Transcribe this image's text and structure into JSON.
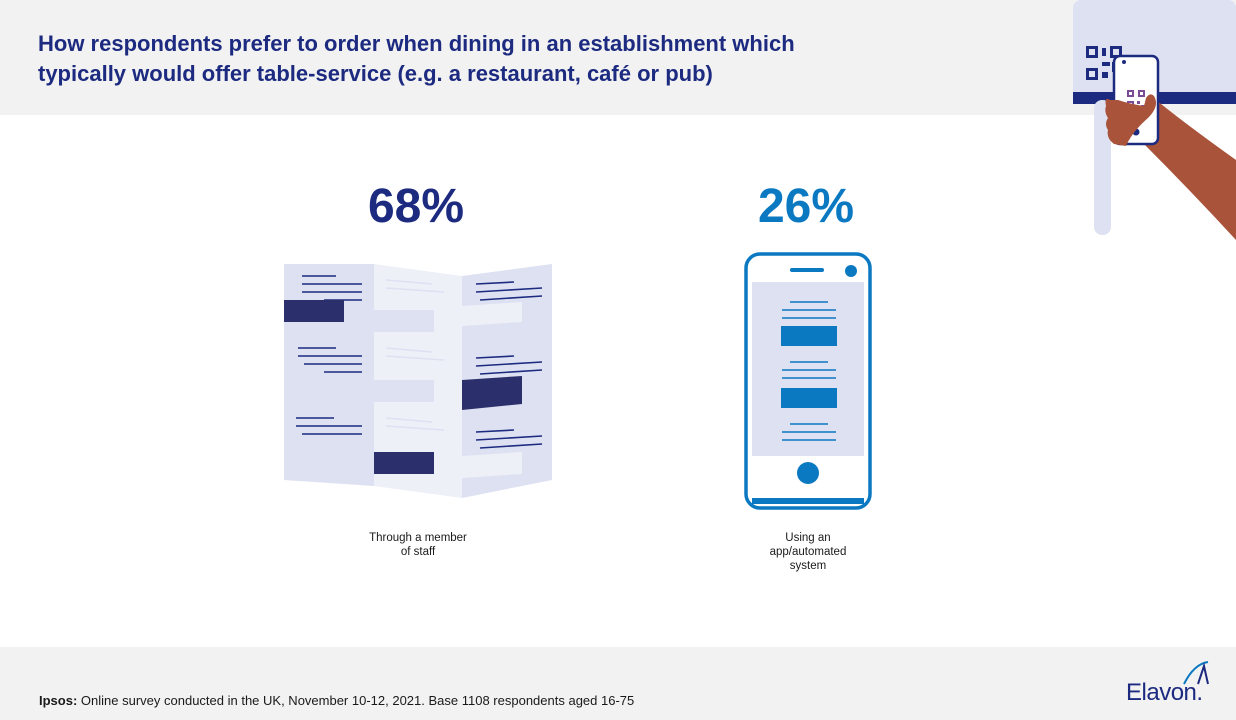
{
  "title_line1": "How respondents prefer to order when dining in an establishment which",
  "title_line2": "typically would offer table-service (e.g. a restaurant, café or pub)",
  "stats": [
    {
      "value": "68%",
      "label_line1": "Through a member",
      "label_line2": "of staff",
      "icon": "paper-menu-icon"
    },
    {
      "value": "26%",
      "label_line1": "Using an",
      "label_line2": "app/automated",
      "label_line3": "system",
      "icon": "smartphone-icon"
    }
  ],
  "source_label": "Ipsos:",
  "source_text": " Online survey conducted in the UK, November 10-12, 2021. Base 1108 respondents aged 16-75",
  "brand": "Elavon.",
  "colors": {
    "navy": "#1c2a80",
    "blue": "#0b79c2",
    "lavender": "#dde1f1",
    "skin": "#a8533a"
  }
}
